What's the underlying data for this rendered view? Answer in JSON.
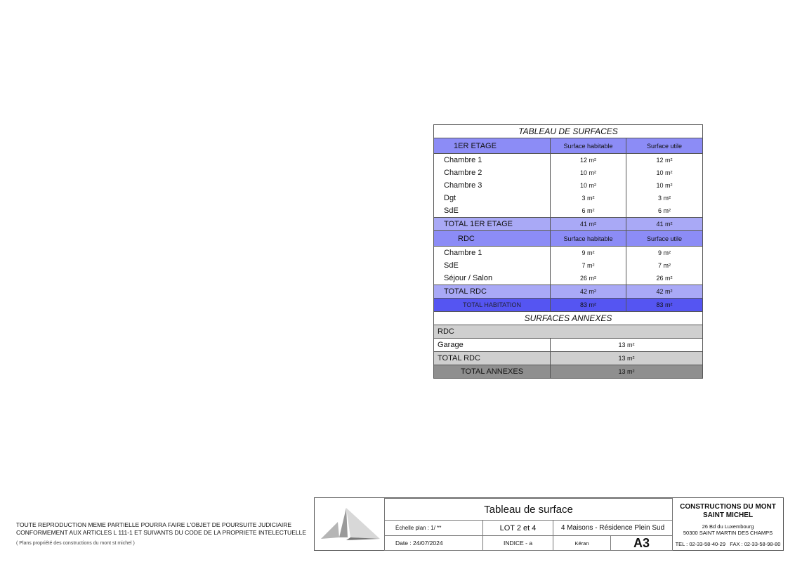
{
  "table": {
    "title": "TABLEAU DE SURFACES",
    "etage": {
      "label": "1ER ETAGE",
      "col1": "Surface habitable",
      "col2": "Surface utile",
      "rows": [
        [
          "Chambre 1",
          "12 m²",
          "12 m²"
        ],
        [
          "Chambre 2",
          "10 m²",
          "10 m²"
        ],
        [
          "Chambre 3",
          "10 m²",
          "10 m²"
        ],
        [
          "Dgt",
          "3 m²",
          "3 m²"
        ],
        [
          "SdE",
          "6 m²",
          "6 m²"
        ]
      ],
      "total": [
        "TOTAL 1ER ETAGE",
        "41 m²",
        "41 m²"
      ]
    },
    "rdc": {
      "label": "RDC",
      "col1": "Surface habitable",
      "col2": "Surface utile",
      "rows": [
        [
          "Chambre 1",
          "9 m²",
          "9 m²"
        ],
        [
          "SdE",
          "7 m²",
          "7 m²"
        ],
        [
          "Séjour / Salon",
          "26 m²",
          "26 m²"
        ]
      ],
      "total": [
        "TOTAL RDC",
        "42 m²",
        "42 m²"
      ]
    },
    "habitation": [
      "TOTAL HABITATION",
      "83 m²",
      "83 m²"
    ],
    "annexes": {
      "title": "SURFACES ANNEXES",
      "section": "RDC",
      "garage": [
        "Garage",
        "13 m²"
      ],
      "total_rdc": [
        "TOTAL RDC",
        "13 m²"
      ],
      "total": [
        "TOTAL ANNEXES",
        "13 m²"
      ]
    }
  },
  "legal": {
    "line1": "TOUTE REPRODUCTION MEME PARTIELLE POURRA FAIRE L'OBJET DE POURSUITE JUDICIAIRE",
    "line2": "CONFORMEMENT AUX ARTICLES L 111-1 ET SUIVANTS DU CODE DE LA PROPRIETE INTELECTUELLE",
    "note": "( Plans propriété des constructions du mont st michel )"
  },
  "titleblock": {
    "title": "Tableau de surface",
    "scale": "Échelle plan : 1/ **",
    "lot": "LOT 2 et 4",
    "project": "4 Maisons - Résidence Plein Sud",
    "date": "Date : 24/07/2024",
    "indice": "INDICE - a",
    "commune": "Kéran",
    "format": "A3",
    "company": "CONSTRUCTIONS DU MONT SAINT MICHEL",
    "address1": "26 Bd du Luxembourg",
    "address2": "50300 SAINT MARTIN DES CHAMPS",
    "contact": "TEL : 02-33-58-40-29   FAX : 02-33-58-98-80"
  },
  "colors": {
    "header": "#8c8cf6",
    "total": "#a9a9f6",
    "habitation": "#5555f2",
    "annex_grey": "#cfcfcf",
    "annex_dark": "#8f8f8f"
  }
}
